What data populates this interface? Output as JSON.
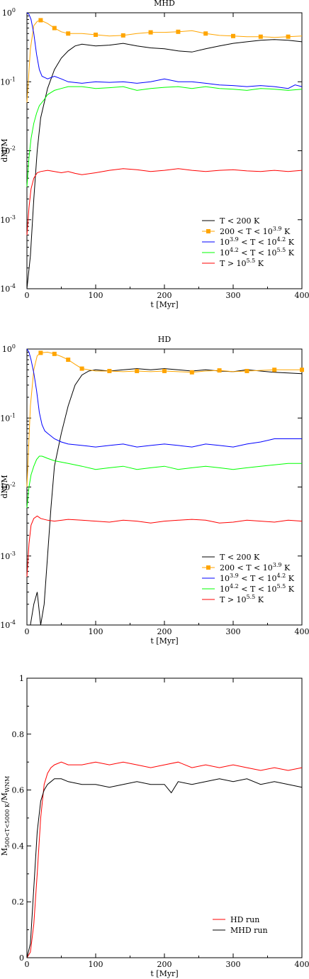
{
  "colors": {
    "black": "#000000",
    "orange": "#ffa500",
    "blue": "#0000ff",
    "green": "#00ff00",
    "red": "#ff0000"
  },
  "chart_data": [
    {
      "type": "line",
      "title": "MHD",
      "xlabel": "t [Myr]",
      "ylabel": "dM/M",
      "xlim": [
        0,
        400
      ],
      "ylim": [
        0.0001,
        1
      ],
      "yscale": "log",
      "xticks": [
        "0",
        "100",
        "200",
        "300",
        "400"
      ],
      "yticks": [
        {
          "base": "10",
          "exp": "-4"
        },
        {
          "base": "10",
          "exp": "-3"
        },
        {
          "base": "10",
          "exp": "-2"
        },
        {
          "base": "10",
          "exp": "-1"
        },
        {
          "base": "10",
          "exp": "0"
        }
      ],
      "legend_position": "lower-right",
      "series": [
        {
          "name": "T < 200 K",
          "color": "#000000",
          "marker": false,
          "x": [
            0,
            5,
            10,
            15,
            20,
            30,
            40,
            50,
            60,
            70,
            80,
            100,
            120,
            140,
            160,
            180,
            200,
            220,
            240,
            260,
            280,
            300,
            320,
            340,
            360,
            380,
            400
          ],
          "y": [
            0.0001,
            0.0003,
            0.002,
            0.01,
            0.03,
            0.08,
            0.15,
            0.22,
            0.28,
            0.33,
            0.35,
            0.33,
            0.34,
            0.36,
            0.33,
            0.31,
            0.3,
            0.28,
            0.27,
            0.3,
            0.33,
            0.36,
            0.38,
            0.4,
            0.41,
            0.4,
            0.38
          ]
        },
        {
          "name": "200 < T < 10^3.9 K",
          "color": "#ffa500",
          "marker": true,
          "x": [
            0,
            5,
            10,
            15,
            20,
            30,
            40,
            50,
            60,
            80,
            100,
            120,
            140,
            160,
            180,
            200,
            220,
            240,
            260,
            280,
            300,
            320,
            340,
            360,
            380,
            400
          ],
          "y": [
            0.05,
            0.3,
            0.65,
            0.75,
            0.78,
            0.7,
            0.6,
            0.53,
            0.5,
            0.5,
            0.48,
            0.46,
            0.47,
            0.5,
            0.52,
            0.52,
            0.53,
            0.55,
            0.5,
            0.47,
            0.46,
            0.45,
            0.45,
            0.44,
            0.45,
            0.46
          ]
        },
        {
          "name": "10^3.9 < T < 10^4.2 K",
          "color": "#0000ff",
          "marker": false,
          "x": [
            0,
            3,
            6,
            10,
            14,
            18,
            22,
            26,
            30,
            40,
            50,
            60,
            80,
            100,
            120,
            140,
            160,
            180,
            200,
            220,
            240,
            260,
            280,
            300,
            320,
            340,
            360,
            380,
            390,
            400
          ],
          "y": [
            1.0,
            0.95,
            0.8,
            0.5,
            0.25,
            0.15,
            0.12,
            0.115,
            0.11,
            0.12,
            0.11,
            0.1,
            0.095,
            0.1,
            0.098,
            0.1,
            0.095,
            0.1,
            0.11,
            0.1,
            0.1,
            0.095,
            0.09,
            0.088,
            0.085,
            0.088,
            0.085,
            0.08,
            0.09,
            0.085
          ]
        },
        {
          "name": "10^4.2 < T < 10^5.5 K",
          "color": "#00ff00",
          "marker": false,
          "x": [
            0,
            3,
            6,
            10,
            14,
            18,
            25,
            30,
            40,
            50,
            60,
            80,
            100,
            120,
            140,
            160,
            180,
            200,
            220,
            240,
            260,
            280,
            300,
            320,
            340,
            360,
            380,
            400
          ],
          "y": [
            0.003,
            0.008,
            0.015,
            0.025,
            0.035,
            0.045,
            0.055,
            0.065,
            0.075,
            0.08,
            0.085,
            0.085,
            0.08,
            0.082,
            0.085,
            0.075,
            0.08,
            0.083,
            0.085,
            0.08,
            0.085,
            0.08,
            0.078,
            0.075,
            0.08,
            0.078,
            0.075,
            0.078
          ]
        },
        {
          "name": "T > 10^5.5 K",
          "color": "#ff0000",
          "marker": false,
          "x": [
            0,
            3,
            6,
            10,
            15,
            20,
            30,
            40,
            50,
            60,
            70,
            80,
            100,
            120,
            140,
            160,
            180,
            200,
            220,
            240,
            260,
            280,
            300,
            320,
            340,
            360,
            380,
            400
          ],
          "y": [
            0.0006,
            0.0015,
            0.0028,
            0.004,
            0.0048,
            0.005,
            0.0052,
            0.005,
            0.0048,
            0.005,
            0.0047,
            0.0045,
            0.0048,
            0.0052,
            0.0055,
            0.0053,
            0.005,
            0.0052,
            0.0055,
            0.0052,
            0.005,
            0.0052,
            0.0053,
            0.0051,
            0.005,
            0.0052,
            0.005,
            0.0052
          ]
        }
      ]
    },
    {
      "type": "line",
      "title": "HD",
      "xlabel": "t [Myr]",
      "ylabel": "dM/M",
      "xlim": [
        0,
        400
      ],
      "ylim": [
        0.0001,
        1
      ],
      "yscale": "log",
      "xticks": [
        "0",
        "100",
        "200",
        "300",
        "400"
      ],
      "yticks": [
        {
          "base": "10",
          "exp": "-4"
        },
        {
          "base": "10",
          "exp": "-3"
        },
        {
          "base": "10",
          "exp": "-2"
        },
        {
          "base": "10",
          "exp": "-1"
        },
        {
          "base": "10",
          "exp": "0"
        }
      ],
      "legend_position": "lower-right",
      "series": [
        {
          "name": "T < 200 K",
          "color": "#000000",
          "marker": false,
          "x": [
            0,
            5,
            10,
            15,
            20,
            25,
            30,
            35,
            40,
            50,
            60,
            70,
            80,
            90,
            100,
            120,
            140,
            160,
            180,
            200,
            220,
            240,
            260,
            280,
            300,
            320,
            340,
            360,
            380,
            400
          ],
          "y": [
            0.0001,
            0.0001,
            0.0002,
            0.0003,
            0.0001,
            0.0002,
            0.001,
            0.005,
            0.02,
            0.06,
            0.15,
            0.3,
            0.42,
            0.48,
            0.5,
            0.48,
            0.5,
            0.52,
            0.5,
            0.52,
            0.5,
            0.48,
            0.5,
            0.48,
            0.47,
            0.5,
            0.48,
            0.46,
            0.45,
            0.44
          ]
        },
        {
          "name": "200 < T < 10^3.9 K",
          "color": "#ffa500",
          "marker": true,
          "x": [
            0,
            5,
            10,
            15,
            20,
            30,
            40,
            50,
            60,
            70,
            80,
            100,
            120,
            140,
            160,
            180,
            200,
            220,
            240,
            260,
            280,
            300,
            320,
            340,
            360,
            380,
            400
          ],
          "y": [
            0.01,
            0.15,
            0.5,
            0.8,
            0.88,
            0.9,
            0.85,
            0.78,
            0.7,
            0.6,
            0.52,
            0.48,
            0.48,
            0.47,
            0.48,
            0.47,
            0.48,
            0.47,
            0.46,
            0.48,
            0.49,
            0.47,
            0.48,
            0.49,
            0.5,
            0.5,
            0.5
          ]
        },
        {
          "name": "10^3.9 < T < 10^4.2 K",
          "color": "#0000ff",
          "marker": false,
          "x": [
            0,
            3,
            6,
            10,
            14,
            18,
            22,
            26,
            30,
            40,
            50,
            60,
            80,
            100,
            120,
            140,
            160,
            180,
            200,
            220,
            240,
            260,
            280,
            300,
            320,
            340,
            360,
            380,
            400
          ],
          "y": [
            1.0,
            0.9,
            0.7,
            0.45,
            0.25,
            0.12,
            0.08,
            0.065,
            0.06,
            0.05,
            0.045,
            0.042,
            0.04,
            0.038,
            0.04,
            0.042,
            0.038,
            0.04,
            0.042,
            0.04,
            0.038,
            0.042,
            0.04,
            0.038,
            0.042,
            0.045,
            0.05,
            0.05,
            0.05
          ]
        },
        {
          "name": "10^4.2 < T < 10^5.5 K",
          "color": "#00ff00",
          "marker": false,
          "x": [
            0,
            3,
            6,
            10,
            14,
            18,
            22,
            26,
            30,
            40,
            60,
            80,
            100,
            120,
            140,
            160,
            180,
            200,
            220,
            240,
            260,
            280,
            300,
            320,
            340,
            360,
            380,
            400
          ],
          "y": [
            0.005,
            0.01,
            0.015,
            0.02,
            0.025,
            0.028,
            0.028,
            0.027,
            0.026,
            0.024,
            0.022,
            0.02,
            0.018,
            0.019,
            0.02,
            0.018,
            0.019,
            0.02,
            0.018,
            0.019,
            0.02,
            0.019,
            0.018,
            0.019,
            0.02,
            0.021,
            0.022,
            0.022
          ]
        },
        {
          "name": "T > 10^5.5 K",
          "color": "#ff0000",
          "marker": false,
          "x": [
            0,
            3,
            6,
            10,
            15,
            20,
            30,
            40,
            60,
            80,
            100,
            120,
            140,
            160,
            180,
            200,
            220,
            240,
            260,
            280,
            300,
            320,
            340,
            360,
            380,
            400
          ],
          "y": [
            0.0005,
            0.0015,
            0.0028,
            0.0035,
            0.0038,
            0.0035,
            0.0033,
            0.0032,
            0.0034,
            0.0033,
            0.0032,
            0.0031,
            0.0033,
            0.0032,
            0.003,
            0.0032,
            0.0033,
            0.0034,
            0.0033,
            0.003,
            0.0031,
            0.0033,
            0.0032,
            0.0031,
            0.0033,
            0.0032
          ]
        }
      ]
    },
    {
      "type": "line",
      "title": "",
      "xlabel": "t [Myr]",
      "ylabel": "M500<T<5000 K/MWNM",
      "ylabel_main": "M",
      "ylabel_sub1": "500<T<5000 K",
      "ylabel_slash": "/M",
      "ylabel_sub2": "WNM",
      "xlim": [
        0,
        400
      ],
      "ylim": [
        0,
        1
      ],
      "yscale": "linear",
      "xticks": [
        "0",
        "100",
        "200",
        "300",
        "400"
      ],
      "yticks": [
        "0",
        "0.2",
        "0.4",
        "0.6",
        "0.8",
        "1"
      ],
      "legend_position": "lower-right",
      "series": [
        {
          "name": "HD run",
          "color": "#ff0000",
          "x": [
            0,
            5,
            10,
            15,
            20,
            25,
            30,
            35,
            40,
            50,
            60,
            80,
            100,
            120,
            140,
            160,
            180,
            200,
            220,
            240,
            260,
            280,
            300,
            320,
            340,
            360,
            380,
            400
          ],
          "y": [
            0,
            0.02,
            0.12,
            0.3,
            0.5,
            0.62,
            0.66,
            0.68,
            0.69,
            0.7,
            0.69,
            0.69,
            0.7,
            0.69,
            0.7,
            0.69,
            0.68,
            0.69,
            0.7,
            0.68,
            0.69,
            0.68,
            0.69,
            0.68,
            0.67,
            0.68,
            0.67,
            0.68
          ]
        },
        {
          "name": "MHD run",
          "color": "#000000",
          "x": [
            0,
            5,
            10,
            15,
            20,
            25,
            30,
            35,
            40,
            50,
            60,
            80,
            100,
            120,
            140,
            160,
            180,
            200,
            210,
            220,
            240,
            260,
            280,
            300,
            320,
            340,
            360,
            380,
            400
          ],
          "y": [
            0,
            0.05,
            0.25,
            0.45,
            0.56,
            0.6,
            0.62,
            0.63,
            0.64,
            0.64,
            0.63,
            0.62,
            0.62,
            0.61,
            0.62,
            0.63,
            0.62,
            0.62,
            0.59,
            0.63,
            0.62,
            0.63,
            0.64,
            0.63,
            0.64,
            0.62,
            0.63,
            0.62,
            0.61
          ]
        }
      ]
    }
  ]
}
